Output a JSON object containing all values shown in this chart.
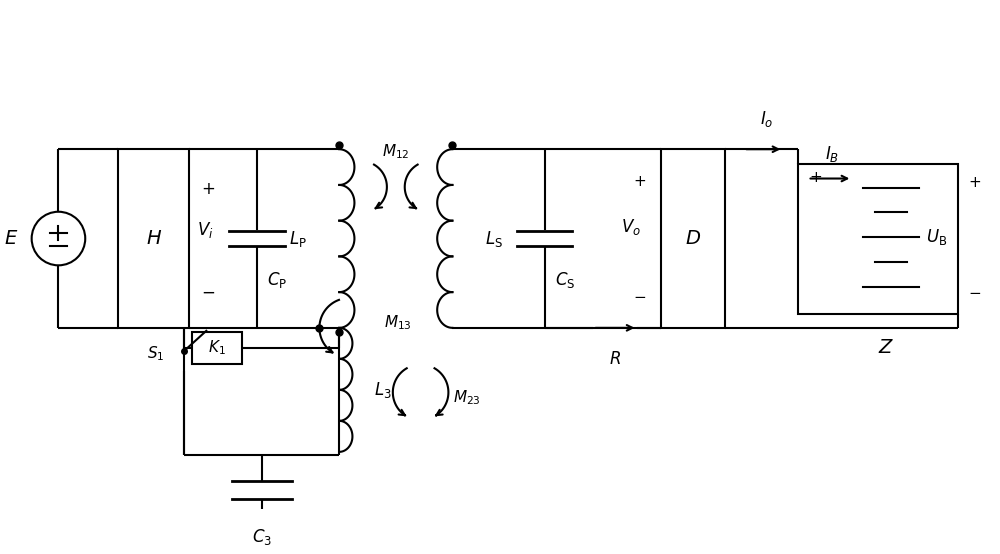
{
  "bg_color": "white",
  "line_color": "#000000",
  "lw": 1.5,
  "fig_width": 10.0,
  "fig_height": 5.54
}
